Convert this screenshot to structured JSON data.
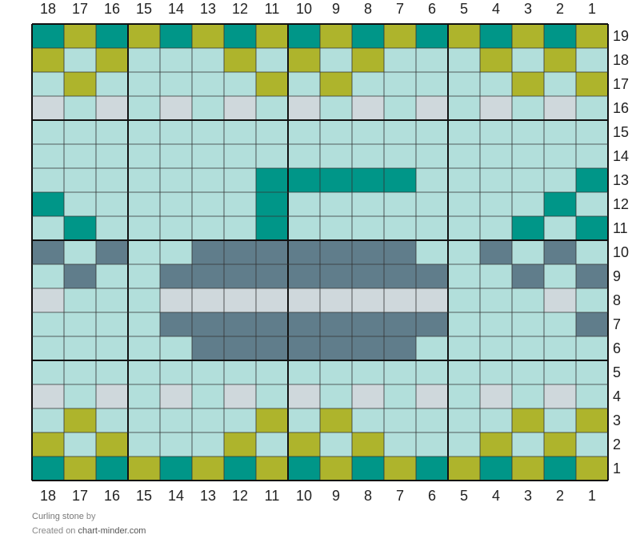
{
  "chart_data": {
    "type": "table",
    "columns": [
      "18",
      "17",
      "16",
      "15",
      "14",
      "13",
      "12",
      "11",
      "10",
      "9",
      "8",
      "7",
      "6",
      "5",
      "4",
      "3",
      "2",
      "1"
    ],
    "rows": [
      "19",
      "18",
      "17",
      "16",
      "15",
      "14",
      "13",
      "12",
      "11",
      "10",
      "9",
      "8",
      "7",
      "6",
      "5",
      "4",
      "3",
      "2",
      "1"
    ],
    "palette": {
      "T": "#009688",
      "O": "#aeb42c",
      "L": "#b2dfdb",
      "G": "#cfd8dc",
      "S": "#607d8b"
    },
    "grid": [
      "TOTOTOTOTOTOTOTOTO",
      "OLOLLLOLOLOLLLOLOL",
      "LOLLLLLOLOLLLLLOLO",
      "GLGLGLGLGLGLGLGLGL",
      "LLLLLLLLLLLLLLLLLL",
      "LLLLLLLLLLLLLLLLLL",
      "LLLLLLLTTTTTLLLLLT",
      "TLLLLLLTLLLLLLLLTL",
      "LTLLLLLTLLLLLLLTLT",
      "SLSLLSSSSSSSLLSLSL",
      "LSLLSSSSSSSSSLLSLS",
      "GLLLGGGGGGGGGLLLGL",
      "LLLLSSSSSSSSSLLLLS",
      "LLLLLSSSSSSSLLLLLL",
      "LLLLLLLLLLLLLLLLLL",
      "GLGLGLGLGLGLGLGLGL",
      "LOLLLLLOLOLLLLLOLO",
      "OLOLLLOLOLOLLLOLOL",
      "TOTOTOTOTOTOTOTOTO"
    ]
  },
  "footer": {
    "title": "Curling stone",
    "by": "by",
    "created_on": "Created on",
    "site": "chart-minder.com"
  }
}
